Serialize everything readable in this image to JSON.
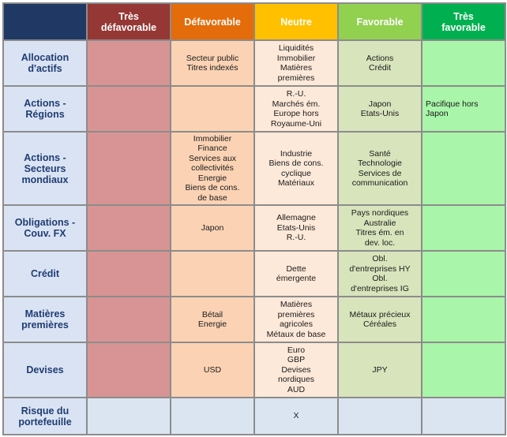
{
  "colors": {
    "corner": "#1f3864",
    "tres_defavorable": "#953735",
    "defavorable": "#e46c0a",
    "neutre": "#ffc000",
    "favorable": "#92d050",
    "tres_favorable": "#00b050"
  },
  "header": {
    "tres_defavorable": [
      "Très",
      "défavorable"
    ],
    "defavorable": [
      "Défavorable"
    ],
    "neutre": [
      "Neutre"
    ],
    "favorable": [
      "Favorable"
    ],
    "tres_favorable": [
      "Très",
      "favorable"
    ]
  },
  "rows": [
    {
      "label": [
        "Allocation",
        "d'actifs"
      ],
      "tres_defavorable": [],
      "defavorable": [
        "Secteur public",
        "Titres indexés"
      ],
      "neutre": [
        "Liquidités",
        "Immobilier",
        "Matières",
        "premières"
      ],
      "favorable": [
        "Actions",
        "Crédit"
      ],
      "tres_favorable": []
    },
    {
      "label": [
        "Actions -",
        "Régions"
      ],
      "tres_defavorable": [],
      "defavorable": [],
      "neutre": [
        "R.-U.",
        "Marchés ém.",
        "Europe hors",
        "Royaume-Uni"
      ],
      "favorable": [
        "Japon",
        "Etats-Unis"
      ],
      "tres_favorable": [
        "Pacifique hors",
        "Japon"
      ]
    },
    {
      "label": [
        "Actions -",
        "Secteurs",
        "mondiaux"
      ],
      "tres_defavorable": [],
      "defavorable": [
        "Immobilier",
        "Finance",
        "Services aux",
        "collectivités",
        "Energie",
        "Biens de cons.",
        "de base"
      ],
      "neutre": [
        "Industrie",
        "Biens de cons.",
        "cyclique",
        "Matériaux"
      ],
      "favorable": [
        "Santé",
        "Technologie",
        "Services de",
        "communication"
      ],
      "tres_favorable": []
    },
    {
      "label": [
        "Obligations -",
        "Couv. FX"
      ],
      "tres_defavorable": [],
      "defavorable": [
        "Japon"
      ],
      "neutre": [
        "Allemagne",
        "Etats-Unis",
        "R.-U."
      ],
      "favorable": [
        "Pays nordiques",
        "Australie",
        "Titres ém. en",
        "dev. loc."
      ],
      "tres_favorable": []
    },
    {
      "label": [
        "Crédit"
      ],
      "tres_defavorable": [],
      "defavorable": [],
      "neutre": [
        "Dette",
        "émergente"
      ],
      "favorable": [
        "Obl.",
        "d'entreprises HY",
        "Obl.",
        "d'entreprises IG"
      ],
      "tres_favorable": []
    },
    {
      "label": [
        "Matières",
        "premières"
      ],
      "tres_defavorable": [],
      "defavorable": [
        "Bétail",
        "Energie"
      ],
      "neutre": [
        "Matières",
        "premières",
        "agricoles",
        "Métaux de base"
      ],
      "favorable": [
        "Métaux précieux",
        "Céréales"
      ],
      "tres_favorable": []
    },
    {
      "label": [
        "Devises"
      ],
      "tres_defavorable": [],
      "defavorable": [
        "USD"
      ],
      "neutre": [
        "Euro",
        "GBP",
        "Devises",
        "nordiques",
        "AUD"
      ],
      "favorable": [
        "JPY"
      ],
      "tres_favorable": []
    }
  ],
  "risk_row": {
    "label": [
      "Risque du",
      "portefeuille"
    ],
    "tres_defavorable": [],
    "defavorable": [],
    "neutre": [
      "X"
    ],
    "favorable": [],
    "tres_favorable": []
  }
}
